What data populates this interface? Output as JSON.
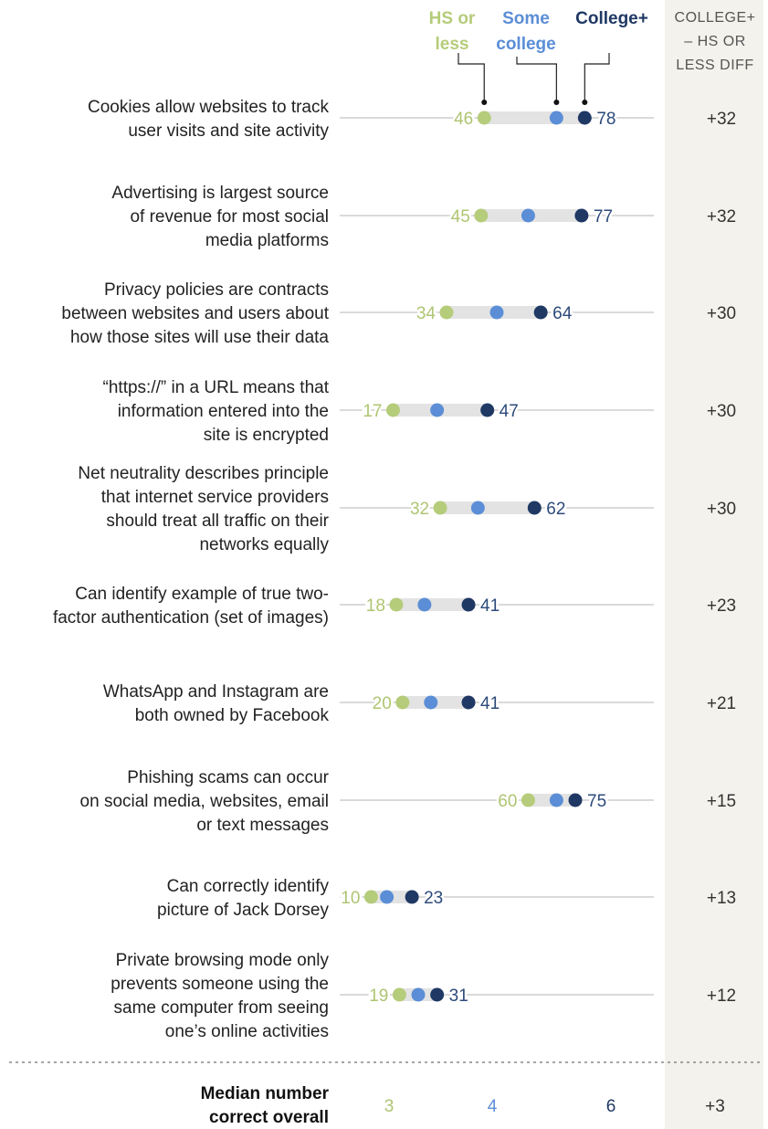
{
  "legend": {
    "hs": {
      "lines": [
        "HS or",
        "less"
      ],
      "color": "#b5cc7a"
    },
    "some": {
      "lines": [
        "Some",
        "college"
      ],
      "color": "#5b8ed6"
    },
    "college": {
      "lines": [
        "College+"
      ],
      "color": "#1f3864"
    }
  },
  "diff_header": [
    "COLLEGE+",
    "– HS OR",
    "LESS DIFF"
  ],
  "chart_data": {
    "type": "dot",
    "xlim": [
      0,
      100
    ],
    "series": [
      {
        "name": "HS or less",
        "color": "#b5cc7a"
      },
      {
        "name": "Some college",
        "color": "#5b8ed6"
      },
      {
        "name": "College+",
        "color": "#1f3864"
      }
    ],
    "rows": [
      {
        "label": [
          "Cookies allow websites to track",
          "user visits and site activity"
        ],
        "hs": 46,
        "some": 69,
        "college": 78,
        "diff": "+32"
      },
      {
        "label": [
          "Advertising is largest source",
          "of revenue for most social",
          "media platforms"
        ],
        "hs": 45,
        "some": 60,
        "college": 77,
        "diff": "+32"
      },
      {
        "label": [
          "Privacy policies are contracts",
          "between websites and users about",
          "how those sites will use their data"
        ],
        "hs": 34,
        "some": 50,
        "college": 64,
        "diff": "+30"
      },
      {
        "label": [
          "“https://” in a URL means that",
          "information entered into the",
          "site is encrypted"
        ],
        "hs": 17,
        "some": 31,
        "college": 47,
        "diff": "+30"
      },
      {
        "label": [
          "Net neutrality describes principle",
          "that internet service providers",
          "should treat all traffic on their",
          "networks equally"
        ],
        "hs": 32,
        "some": 44,
        "college": 62,
        "diff": "+30"
      },
      {
        "label": [
          "Can identify example of true two-",
          "factor authentication (set of images)"
        ],
        "hs": 18,
        "some": 27,
        "college": 41,
        "diff": "+23"
      },
      {
        "label": [
          "WhatsApp and Instagram are",
          "both owned by Facebook"
        ],
        "hs": 20,
        "some": 29,
        "college": 41,
        "diff": "+21"
      },
      {
        "label": [
          "Phishing scams can occur",
          "on social media, websites, email",
          "or text messages"
        ],
        "hs": 60,
        "some": 69,
        "college": 75,
        "diff": "+15"
      },
      {
        "label": [
          "Can correctly identify",
          "picture of Jack Dorsey"
        ],
        "hs": 10,
        "some": 15,
        "college": 23,
        "diff": "+13"
      },
      {
        "label": [
          "Private browsing mode only",
          "prevents someone using the",
          "same computer from seeing",
          "one’s online activities"
        ],
        "hs": 19,
        "some": 25,
        "college": 31,
        "diff": "+12"
      }
    ],
    "median": {
      "label": [
        "Median number",
        "correct overall"
      ],
      "hs": 3,
      "some": 4,
      "college": 6,
      "diff": "+3"
    }
  }
}
